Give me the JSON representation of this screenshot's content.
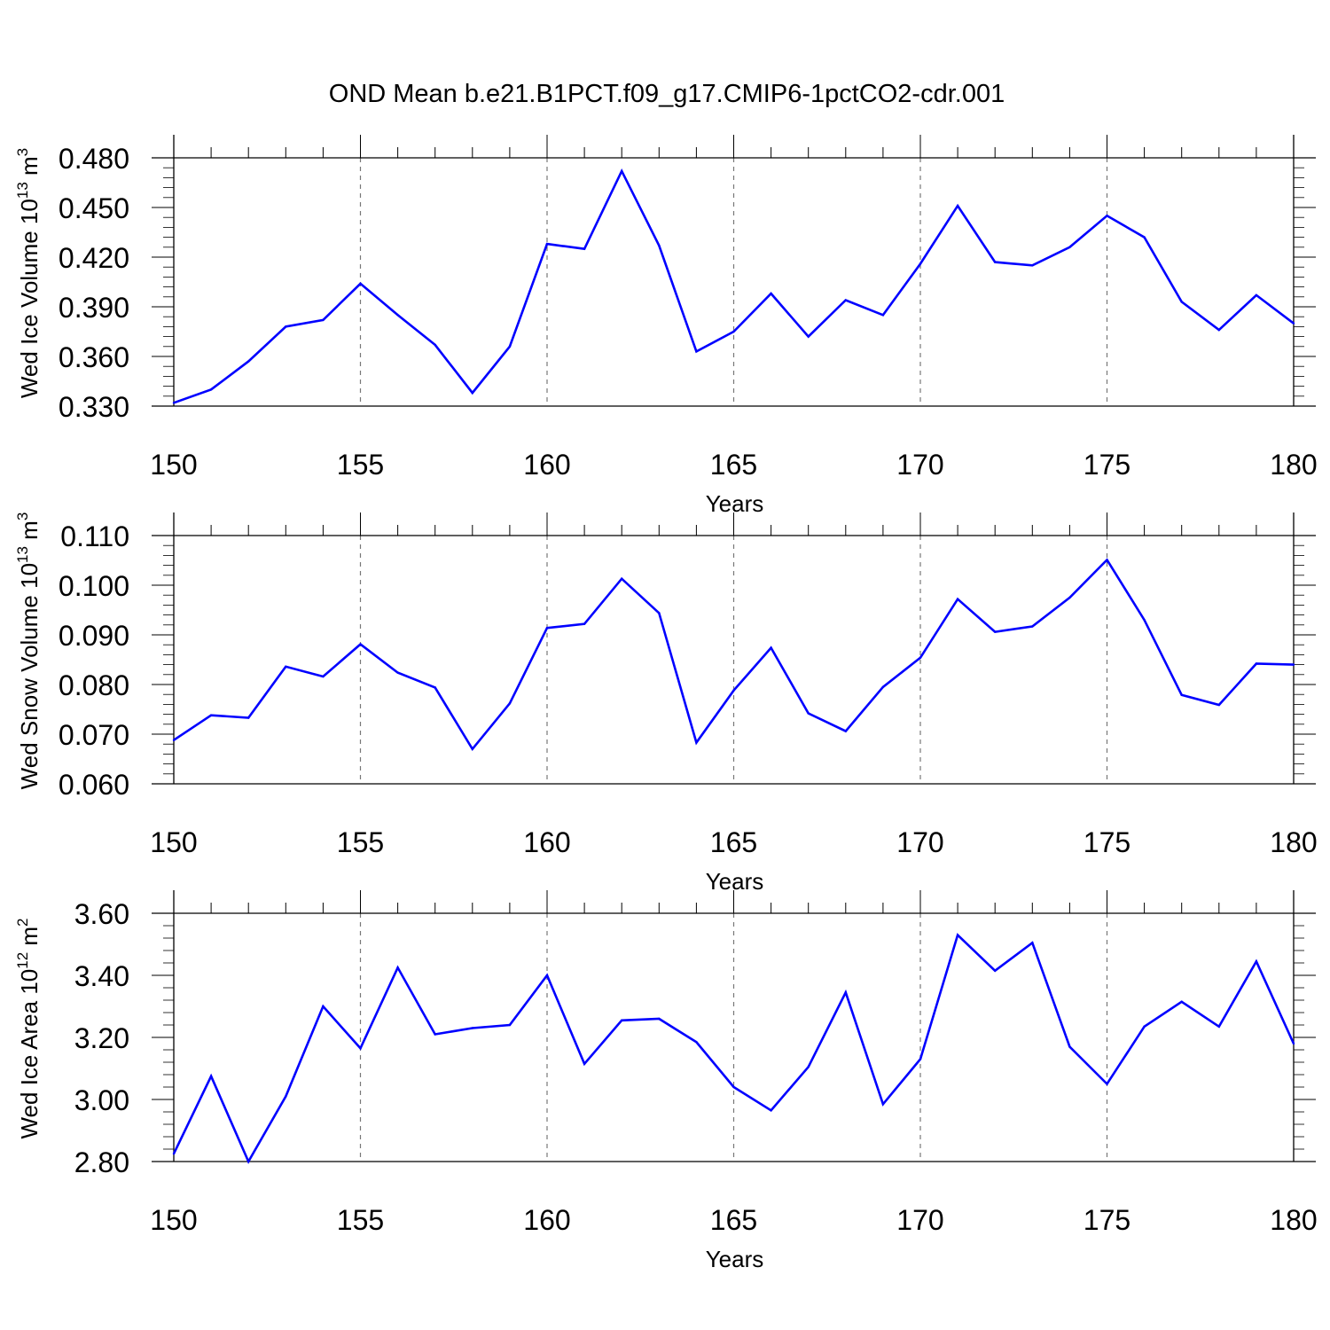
{
  "title": "OND Mean b.e21.B1PCT.f09_g17.CMIP6-1pctCO2-cdr.001",
  "line_color": "#0000ff",
  "chart_data": [
    {
      "type": "line",
      "ylabel": "Wed Ice Volume 10",
      "ylabel_exp": "13",
      "ylabel_unit": " m",
      "ylabel_unit_exp": "3",
      "xlabel": "Years",
      "xlim": [
        150,
        180
      ],
      "ylim": [
        0.33,
        0.48
      ],
      "x_ticks": [
        150,
        155,
        160,
        165,
        170,
        175,
        180
      ],
      "y_ticks": [
        0.33,
        0.36,
        0.39,
        0.42,
        0.45,
        0.48
      ],
      "y_tick_labels": [
        "0.330",
        "0.360",
        "0.390",
        "0.420",
        "0.450",
        "0.480"
      ],
      "y_minor_step": 0.006,
      "grid": "vertical dashed at major x ticks",
      "series": [
        {
          "x": [
            150,
            151,
            152,
            153,
            154,
            155,
            156,
            157,
            158,
            159,
            160,
            161,
            162,
            163,
            164,
            165,
            166,
            167,
            168,
            169,
            170,
            171,
            172,
            173,
            174,
            175,
            176,
            177,
            178,
            179,
            180
          ],
          "values": [
            0.332,
            0.34,
            0.357,
            0.378,
            0.382,
            0.404,
            0.385,
            0.367,
            0.338,
            0.366,
            0.428,
            0.425,
            0.472,
            0.427,
            0.363,
            0.375,
            0.398,
            0.372,
            0.394,
            0.385,
            0.416,
            0.451,
            0.417,
            0.415,
            0.426,
            0.445,
            0.432,
            0.393,
            0.376,
            0.397,
            0.38
          ]
        }
      ]
    },
    {
      "type": "line",
      "ylabel": "Wed Snow Volume 10",
      "ylabel_exp": "13",
      "ylabel_unit": " m",
      "ylabel_unit_exp": "3",
      "xlabel": "Years",
      "xlim": [
        150,
        180
      ],
      "ylim": [
        0.06,
        0.11
      ],
      "x_ticks": [
        150,
        155,
        160,
        165,
        170,
        175,
        180
      ],
      "y_ticks": [
        0.06,
        0.07,
        0.08,
        0.09,
        0.1,
        0.11
      ],
      "y_tick_labels": [
        "0.060",
        "0.070",
        "0.080",
        "0.090",
        "0.100",
        "0.110"
      ],
      "y_minor_step": 0.002,
      "grid": "vertical dashed at major x ticks",
      "series": [
        {
          "x": [
            150,
            151,
            152,
            153,
            154,
            155,
            156,
            157,
            158,
            159,
            160,
            161,
            162,
            163,
            164,
            165,
            166,
            167,
            168,
            169,
            170,
            171,
            172,
            173,
            174,
            175,
            176,
            177,
            178,
            179,
            180
          ],
          "values": [
            0.0688,
            0.0738,
            0.0733,
            0.0836,
            0.0816,
            0.0881,
            0.0824,
            0.0794,
            0.067,
            0.0762,
            0.0914,
            0.0922,
            0.1013,
            0.0944,
            0.0683,
            0.0788,
            0.0874,
            0.0742,
            0.0706,
            0.0795,
            0.0854,
            0.0972,
            0.0906,
            0.0917,
            0.0975,
            0.1051,
            0.093,
            0.0779,
            0.0759,
            0.0842,
            0.084
          ]
        }
      ]
    },
    {
      "type": "line",
      "ylabel": "Wed Ice Area 10",
      "ylabel_exp": "12",
      "ylabel_unit": " m",
      "ylabel_unit_exp": "2",
      "xlabel": "Years",
      "xlim": [
        150,
        180
      ],
      "ylim": [
        2.8,
        3.6
      ],
      "x_ticks": [
        150,
        155,
        160,
        165,
        170,
        175,
        180
      ],
      "y_ticks": [
        2.8,
        3.0,
        3.2,
        3.4,
        3.6
      ],
      "y_tick_labels": [
        "2.80",
        "3.00",
        "3.20",
        "3.40",
        "3.60"
      ],
      "y_minor_step": 0.04,
      "grid": "vertical dashed at major x ticks",
      "series": [
        {
          "x": [
            150,
            151,
            152,
            153,
            154,
            155,
            156,
            157,
            158,
            159,
            160,
            161,
            162,
            163,
            164,
            165,
            166,
            167,
            168,
            169,
            170,
            171,
            172,
            173,
            174,
            175,
            176,
            177,
            178,
            179,
            180
          ],
          "values": [
            2.825,
            3.075,
            2.8,
            3.01,
            3.3,
            3.165,
            3.425,
            3.21,
            3.23,
            3.24,
            3.4,
            3.115,
            3.255,
            3.26,
            3.185,
            3.04,
            2.965,
            3.105,
            3.345,
            2.985,
            3.13,
            3.53,
            3.415,
            3.505,
            3.17,
            3.05,
            3.235,
            3.315,
            3.235,
            3.445,
            3.18
          ]
        }
      ]
    }
  ]
}
